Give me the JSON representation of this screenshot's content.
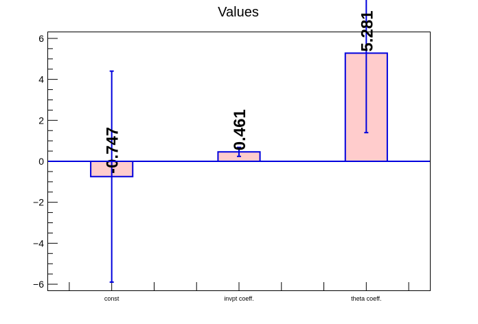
{
  "chart_data": {
    "type": "bar",
    "title": "Values",
    "categories": [
      "const",
      "invpt coeff.",
      "theta coeff."
    ],
    "values": [
      -0.747,
      0.461,
      5.281
    ],
    "value_labels": [
      "-0.747",
      "0.461",
      "5.281"
    ],
    "errors": [
      5.15,
      0.22,
      3.88
    ],
    "ylim": [
      -6.3,
      6.3
    ],
    "yticks": [
      -6,
      -4,
      -2,
      0,
      2,
      4,
      6
    ],
    "ytick_labels": [
      "−6",
      "−4",
      "−2",
      "0",
      "2",
      "4",
      "6"
    ],
    "xlabel": "",
    "ylabel": "",
    "grid": false,
    "colors": {
      "bar_fill": "#ffcccc",
      "bar_edge": "#0000dd",
      "axis": "#000000"
    }
  }
}
